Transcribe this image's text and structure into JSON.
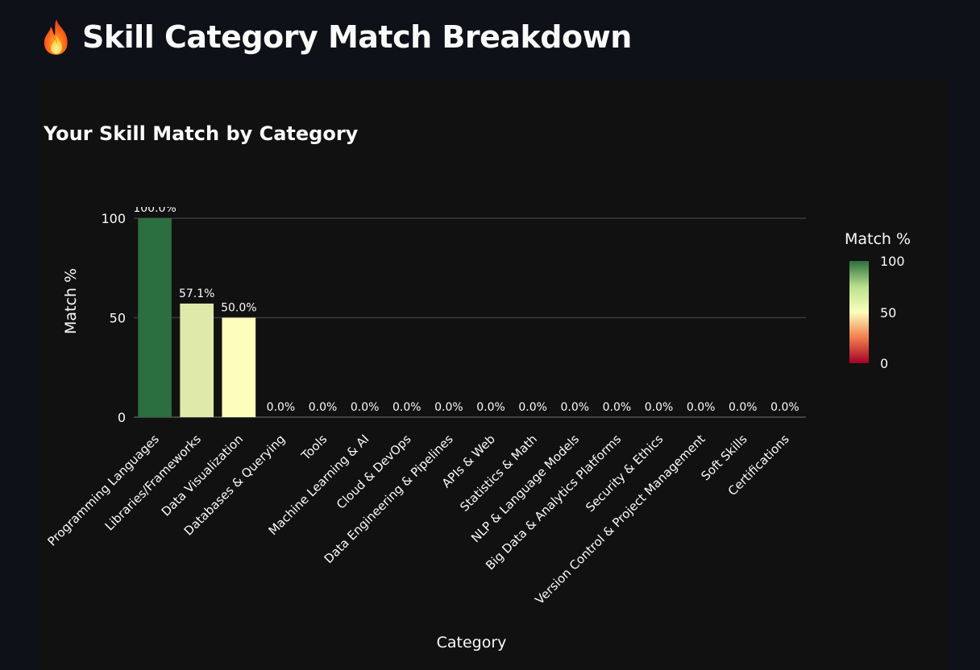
{
  "page": {
    "title": "Skill Category Match Breakdown",
    "icon": "flame-icon"
  },
  "chart_data": {
    "type": "bar",
    "title": "Your Skill Match by Category",
    "xlabel": "Category",
    "ylabel": "Match %",
    "ylim": [
      0,
      100
    ],
    "yticks": [
      "0",
      "50",
      "100"
    ],
    "grid": true,
    "categories": [
      "Programming Languages",
      "Libraries/Frameworks",
      "Data Visualization",
      "Databases & Querying",
      "Tools",
      "Machine Learning & AI",
      "Cloud & DevOps",
      "Data Engineering & Pipelines",
      "APIs & Web",
      "Statistics & Math",
      "NLP & Language Models",
      "Big Data & Analytics Platforms",
      "Security & Ethics",
      "Version Control & Project Management",
      "Soft Skills",
      "Certifications"
    ],
    "values": [
      100,
      57.1,
      50,
      0,
      0,
      0,
      0,
      0,
      0,
      0,
      0,
      0,
      0,
      0,
      0,
      0
    ],
    "data_labels": [
      "100.0%",
      "57.1%",
      "50.0%",
      "0.0%",
      "0.0%",
      "0.0%",
      "0.0%",
      "0.0%",
      "0.0%",
      "0.0%",
      "0.0%",
      "0.0%",
      "0.0%",
      "0.0%",
      "0.0%",
      "0.0%"
    ],
    "colorbar": {
      "title": "Match %",
      "ticks": [
        "100",
        "50",
        "0"
      ],
      "colorscale": [
        "#a50026",
        "#fdfebc",
        "#2b6e3f"
      ]
    }
  }
}
